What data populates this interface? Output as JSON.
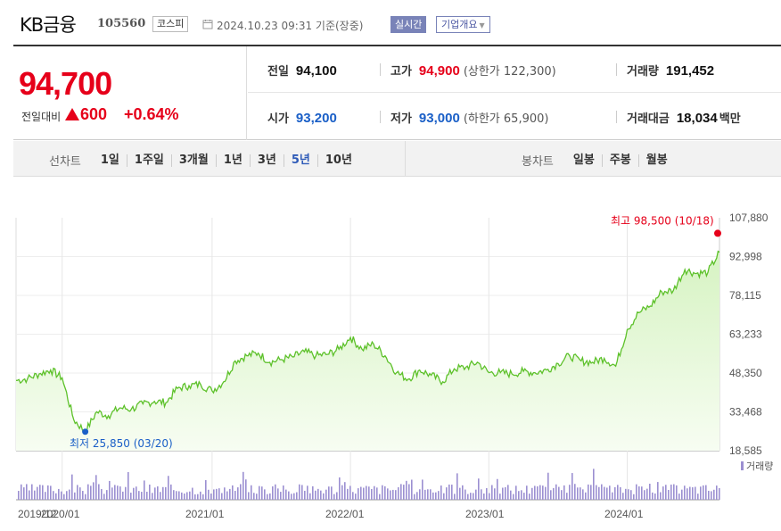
{
  "header": {
    "name": "KB금융",
    "code": "105560",
    "market": "코스피",
    "timestamp": "2024.10.23 09:31 기준(장중)",
    "realtime_label": "실시간",
    "company_info_label": "기업개요"
  },
  "price": {
    "current": "94,700",
    "change_label": "전일대비",
    "change": "600",
    "change_pct": "+0.64%"
  },
  "stats": {
    "prev_close": {
      "label": "전일",
      "value": "94,100"
    },
    "high": {
      "label": "고가",
      "value": "94,900",
      "limit_label": "(상한가 122,300)"
    },
    "volume": {
      "label": "거래량",
      "value": "191,452"
    },
    "open": {
      "label": "시가",
      "value": "93,200"
    },
    "low": {
      "label": "저가",
      "value": "93,000",
      "limit_label": "(하한가 65,900)"
    },
    "trade_value": {
      "label": "거래대금",
      "value": "18,034",
      "unit": "백만"
    }
  },
  "toolbar": {
    "line_chart_label": "선차트",
    "periods": [
      "1일",
      "1주일",
      "3개월",
      "1년",
      "3년",
      "5년",
      "10년"
    ],
    "active_period": "5년",
    "candle_chart_label": "봉차트",
    "candle_periods": [
      "일봉",
      "주봉",
      "월봉"
    ]
  },
  "chart_data": {
    "type": "area",
    "y_ticks": [
      "107,880",
      "92,998",
      "78,115",
      "63,233",
      "48,350",
      "33,468",
      "18,585"
    ],
    "ylim": [
      18585,
      107880
    ],
    "x_ticks": [
      "2019/12",
      "2020/01",
      "2021/01",
      "2022/01",
      "2023/01",
      "2024/01"
    ],
    "max_annotation": "최고 98,500 (10/18)",
    "min_annotation": "최저 25,850 (03/20)",
    "volume_legend": "거래량",
    "grid": true,
    "colors": {
      "line": "#5dc12a",
      "fill_top": "#d6f3c2",
      "max": "#e6001a",
      "min": "#1a5fc7",
      "volume": "#9b8fd1"
    },
    "series": [
      {
        "x": "2019-10",
        "y": 45500
      },
      {
        "x": "2019-11",
        "y": 46200
      },
      {
        "x": "2019-12",
        "y": 48000
      },
      {
        "x": "2020-01",
        "y": 49500
      },
      {
        "x": "2020-02",
        "y": 46500
      },
      {
        "x": "2020-03",
        "y": 30500
      },
      {
        "x": "2020-03b",
        "y": 25850
      },
      {
        "x": "2020-04",
        "y": 33500
      },
      {
        "x": "2020-05",
        "y": 32000
      },
      {
        "x": "2020-06",
        "y": 35000
      },
      {
        "x": "2020-07",
        "y": 34500
      },
      {
        "x": "2020-08",
        "y": 36500
      },
      {
        "x": "2020-09",
        "y": 37500
      },
      {
        "x": "2020-10",
        "y": 37000
      },
      {
        "x": "2020-11",
        "y": 42500
      },
      {
        "x": "2020-12",
        "y": 43500
      },
      {
        "x": "2021-01",
        "y": 44000
      },
      {
        "x": "2021-02",
        "y": 41500
      },
      {
        "x": "2021-03",
        "y": 45000
      },
      {
        "x": "2021-04",
        "y": 53000
      },
      {
        "x": "2021-05",
        "y": 55000
      },
      {
        "x": "2021-06",
        "y": 56000
      },
      {
        "x": "2021-07",
        "y": 52500
      },
      {
        "x": "2021-08",
        "y": 53500
      },
      {
        "x": "2021-09",
        "y": 54500
      },
      {
        "x": "2021-10",
        "y": 56500
      },
      {
        "x": "2021-11",
        "y": 55000
      },
      {
        "x": "2021-12",
        "y": 55500
      },
      {
        "x": "2022-01",
        "y": 57500
      },
      {
        "x": "2022-02",
        "y": 62000
      },
      {
        "x": "2022-03",
        "y": 57500
      },
      {
        "x": "2022-04",
        "y": 59500
      },
      {
        "x": "2022-05",
        "y": 55000
      },
      {
        "x": "2022-06",
        "y": 48500
      },
      {
        "x": "2022-07",
        "y": 46000
      },
      {
        "x": "2022-08",
        "y": 49500
      },
      {
        "x": "2022-09",
        "y": 47500
      },
      {
        "x": "2022-10",
        "y": 45000
      },
      {
        "x": "2022-11",
        "y": 50000
      },
      {
        "x": "2022-12",
        "y": 50500
      },
      {
        "x": "2023-01",
        "y": 52500
      },
      {
        "x": "2023-02",
        "y": 48500
      },
      {
        "x": "2023-03",
        "y": 48500
      },
      {
        "x": "2023-04",
        "y": 48000
      },
      {
        "x": "2023-05",
        "y": 49000
      },
      {
        "x": "2023-06",
        "y": 48500
      },
      {
        "x": "2023-07",
        "y": 49500
      },
      {
        "x": "2023-08",
        "y": 52000
      },
      {
        "x": "2023-09",
        "y": 55000
      },
      {
        "x": "2023-10",
        "y": 53000
      },
      {
        "x": "2023-11",
        "y": 52500
      },
      {
        "x": "2023-12",
        "y": 54000
      },
      {
        "x": "2024-01",
        "y": 51000
      },
      {
        "x": "2024-02",
        "y": 65000
      },
      {
        "x": "2024-03",
        "y": 71500
      },
      {
        "x": "2024-04",
        "y": 74000
      },
      {
        "x": "2024-05",
        "y": 79500
      },
      {
        "x": "2024-06",
        "y": 80000
      },
      {
        "x": "2024-07",
        "y": 88000
      },
      {
        "x": "2024-08",
        "y": 86500
      },
      {
        "x": "2024-09",
        "y": 87000
      },
      {
        "x": "2024-10",
        "y": 94700
      }
    ]
  }
}
